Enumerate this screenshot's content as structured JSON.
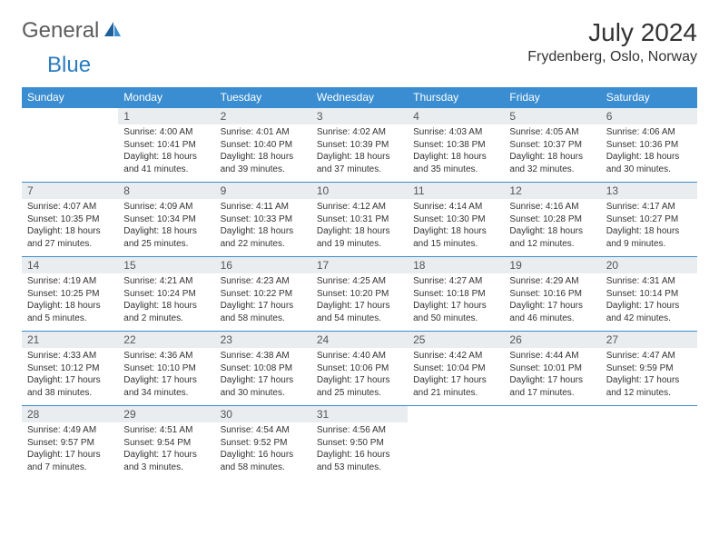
{
  "logo": {
    "general": "General",
    "blue": "Blue"
  },
  "header": {
    "title": "July 2024",
    "location": "Frydenberg, Oslo, Norway"
  },
  "colors": {
    "header_bg": "#3a8dd0",
    "header_fg": "#ffffff",
    "daynum_bg": "#e9edf0",
    "border": "#3a8dd0",
    "text": "#333333",
    "logo_gray": "#5c5c5c",
    "logo_blue": "#2b7cbf"
  },
  "days": [
    "Sunday",
    "Monday",
    "Tuesday",
    "Wednesday",
    "Thursday",
    "Friday",
    "Saturday"
  ],
  "weeks": [
    [
      {
        "n": "",
        "t": ""
      },
      {
        "n": "1",
        "t": "Sunrise: 4:00 AM\nSunset: 10:41 PM\nDaylight: 18 hours and 41 minutes."
      },
      {
        "n": "2",
        "t": "Sunrise: 4:01 AM\nSunset: 10:40 PM\nDaylight: 18 hours and 39 minutes."
      },
      {
        "n": "3",
        "t": "Sunrise: 4:02 AM\nSunset: 10:39 PM\nDaylight: 18 hours and 37 minutes."
      },
      {
        "n": "4",
        "t": "Sunrise: 4:03 AM\nSunset: 10:38 PM\nDaylight: 18 hours and 35 minutes."
      },
      {
        "n": "5",
        "t": "Sunrise: 4:05 AM\nSunset: 10:37 PM\nDaylight: 18 hours and 32 minutes."
      },
      {
        "n": "6",
        "t": "Sunrise: 4:06 AM\nSunset: 10:36 PM\nDaylight: 18 hours and 30 minutes."
      }
    ],
    [
      {
        "n": "7",
        "t": "Sunrise: 4:07 AM\nSunset: 10:35 PM\nDaylight: 18 hours and 27 minutes."
      },
      {
        "n": "8",
        "t": "Sunrise: 4:09 AM\nSunset: 10:34 PM\nDaylight: 18 hours and 25 minutes."
      },
      {
        "n": "9",
        "t": "Sunrise: 4:11 AM\nSunset: 10:33 PM\nDaylight: 18 hours and 22 minutes."
      },
      {
        "n": "10",
        "t": "Sunrise: 4:12 AM\nSunset: 10:31 PM\nDaylight: 18 hours and 19 minutes."
      },
      {
        "n": "11",
        "t": "Sunrise: 4:14 AM\nSunset: 10:30 PM\nDaylight: 18 hours and 15 minutes."
      },
      {
        "n": "12",
        "t": "Sunrise: 4:16 AM\nSunset: 10:28 PM\nDaylight: 18 hours and 12 minutes."
      },
      {
        "n": "13",
        "t": "Sunrise: 4:17 AM\nSunset: 10:27 PM\nDaylight: 18 hours and 9 minutes."
      }
    ],
    [
      {
        "n": "14",
        "t": "Sunrise: 4:19 AM\nSunset: 10:25 PM\nDaylight: 18 hours and 5 minutes."
      },
      {
        "n": "15",
        "t": "Sunrise: 4:21 AM\nSunset: 10:24 PM\nDaylight: 18 hours and 2 minutes."
      },
      {
        "n": "16",
        "t": "Sunrise: 4:23 AM\nSunset: 10:22 PM\nDaylight: 17 hours and 58 minutes."
      },
      {
        "n": "17",
        "t": "Sunrise: 4:25 AM\nSunset: 10:20 PM\nDaylight: 17 hours and 54 minutes."
      },
      {
        "n": "18",
        "t": "Sunrise: 4:27 AM\nSunset: 10:18 PM\nDaylight: 17 hours and 50 minutes."
      },
      {
        "n": "19",
        "t": "Sunrise: 4:29 AM\nSunset: 10:16 PM\nDaylight: 17 hours and 46 minutes."
      },
      {
        "n": "20",
        "t": "Sunrise: 4:31 AM\nSunset: 10:14 PM\nDaylight: 17 hours and 42 minutes."
      }
    ],
    [
      {
        "n": "21",
        "t": "Sunrise: 4:33 AM\nSunset: 10:12 PM\nDaylight: 17 hours and 38 minutes."
      },
      {
        "n": "22",
        "t": "Sunrise: 4:36 AM\nSunset: 10:10 PM\nDaylight: 17 hours and 34 minutes."
      },
      {
        "n": "23",
        "t": "Sunrise: 4:38 AM\nSunset: 10:08 PM\nDaylight: 17 hours and 30 minutes."
      },
      {
        "n": "24",
        "t": "Sunrise: 4:40 AM\nSunset: 10:06 PM\nDaylight: 17 hours and 25 minutes."
      },
      {
        "n": "25",
        "t": "Sunrise: 4:42 AM\nSunset: 10:04 PM\nDaylight: 17 hours and 21 minutes."
      },
      {
        "n": "26",
        "t": "Sunrise: 4:44 AM\nSunset: 10:01 PM\nDaylight: 17 hours and 17 minutes."
      },
      {
        "n": "27",
        "t": "Sunrise: 4:47 AM\nSunset: 9:59 PM\nDaylight: 17 hours and 12 minutes."
      }
    ],
    [
      {
        "n": "28",
        "t": "Sunrise: 4:49 AM\nSunset: 9:57 PM\nDaylight: 17 hours and 7 minutes."
      },
      {
        "n": "29",
        "t": "Sunrise: 4:51 AM\nSunset: 9:54 PM\nDaylight: 17 hours and 3 minutes."
      },
      {
        "n": "30",
        "t": "Sunrise: 4:54 AM\nSunset: 9:52 PM\nDaylight: 16 hours and 58 minutes."
      },
      {
        "n": "31",
        "t": "Sunrise: 4:56 AM\nSunset: 9:50 PM\nDaylight: 16 hours and 53 minutes."
      },
      {
        "n": "",
        "t": ""
      },
      {
        "n": "",
        "t": ""
      },
      {
        "n": "",
        "t": ""
      }
    ]
  ]
}
